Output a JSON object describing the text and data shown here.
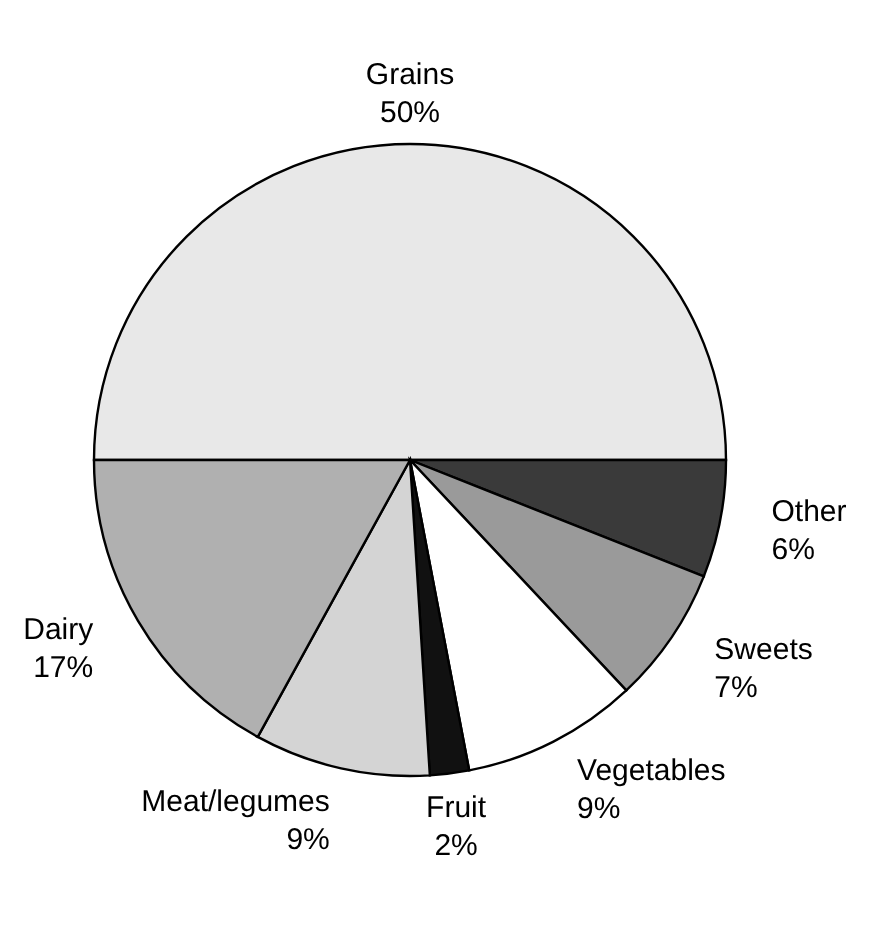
{
  "chart_data": {
    "type": "pie",
    "categories": [
      "Grains",
      "Other",
      "Sweets",
      "Vegetables",
      "Fruit",
      "Meat/legumes",
      "Dairy"
    ],
    "values": [
      50,
      6,
      7,
      9,
      2,
      9,
      17
    ],
    "value_labels": [
      "50%",
      "6%",
      "7%",
      "9%",
      "2%",
      "9%",
      "17%"
    ],
    "colors": [
      "#e8e8e8",
      "#3a3a3a",
      "#9a9a9a",
      "#ffffff",
      "#111111",
      "#d4d4d4",
      "#b0b0b0"
    ]
  }
}
